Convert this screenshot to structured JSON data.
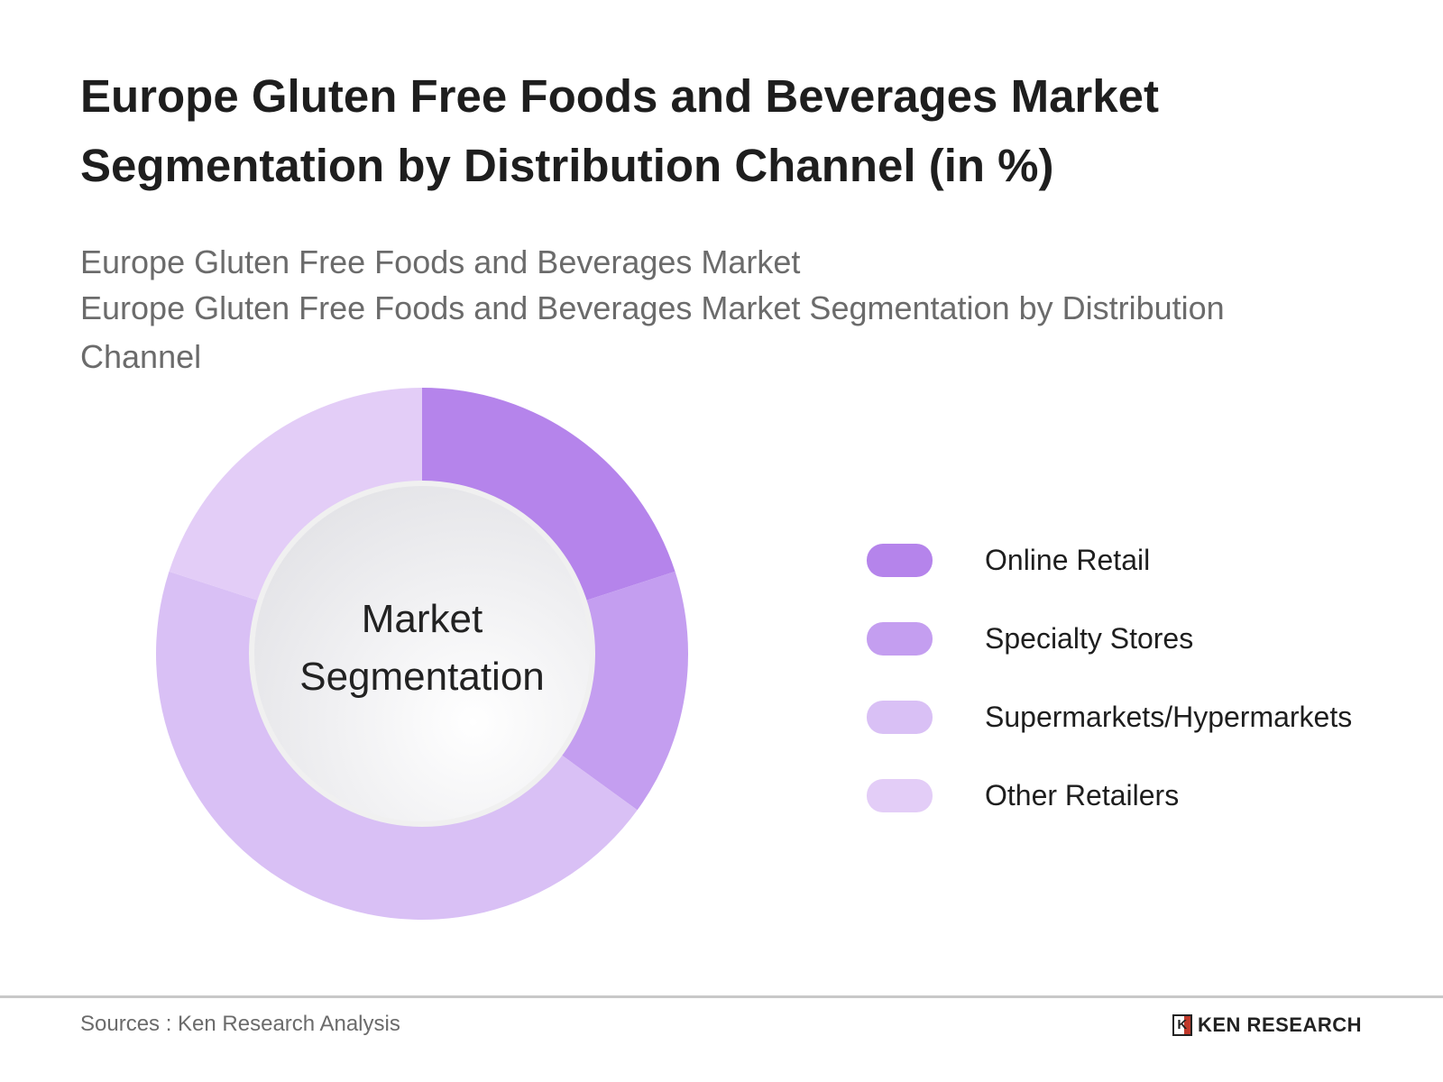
{
  "title": "Europe Gluten Free Foods and Beverages Market Segmentation by Distribution Channel (in %)",
  "subtitle_lines": [
    "Europe Gluten Free Foods and Beverages Market",
    "Europe Gluten Free Foods and Beverages Market Segmentation by Distribution Channel"
  ],
  "center_label": [
    "Market",
    "Segmentation"
  ],
  "footer": {
    "sources": "Sources : Ken Research Analysis",
    "logo": "KEN RESEARCH",
    "logo_letter": "K"
  },
  "chart_data": {
    "type": "pie",
    "donut": true,
    "title": "Europe Gluten Free Foods and Beverages Market Segmentation by Distribution Channel (in %)",
    "categories": [
      "Online Retail",
      "Specialty Stores",
      "Supermarkets/Hypermarkets",
      "Other Retailers"
    ],
    "values": [
      20,
      15,
      45,
      20
    ],
    "colors": [
      "#b584eb",
      "#c49ef0",
      "#d9c0f5",
      "#e3cdf7"
    ],
    "legend": "right"
  }
}
